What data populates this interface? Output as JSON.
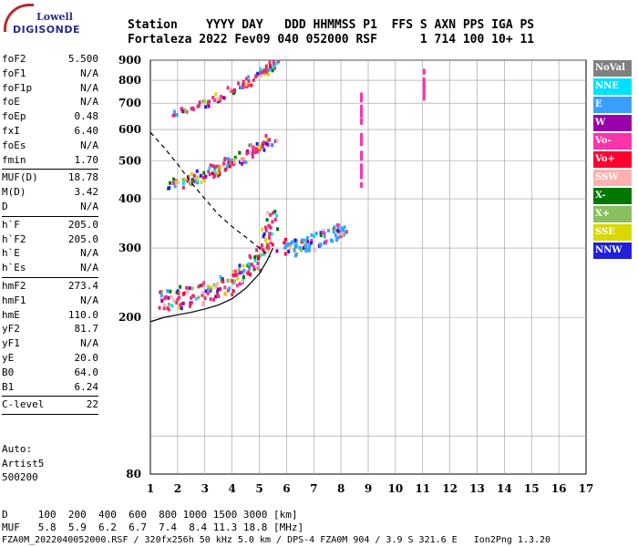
{
  "logo": {
    "line1": "Lowell",
    "line2": "DIGISONDE"
  },
  "header": {
    "row1": "Station    YYYY DAY   DDD HHMMSS P1  FFS S AXN PPS IGA PS",
    "row2": "Fortaleza 2022 Fev09 040 052000 RSF      1 714 100 10+ 11"
  },
  "params_group1": [
    {
      "k": "foF2",
      "v": "5.500"
    },
    {
      "k": "foF1",
      "v": "N/A"
    },
    {
      "k": "foF1p",
      "v": "N/A"
    },
    {
      "k": "foE",
      "v": "N/A"
    },
    {
      "k": "foEp",
      "v": "0.48"
    },
    {
      "k": "fxI",
      "v": "6.40"
    },
    {
      "k": "foEs",
      "v": "N/A"
    },
    {
      "k": "fmin",
      "v": "1.70"
    }
  ],
  "params_group2": [
    {
      "k": "MUF(D)",
      "v": "18.78"
    },
    {
      "k": "M(D)",
      "v": "3.42"
    },
    {
      "k": "D",
      "v": "N/A"
    }
  ],
  "params_group3": [
    {
      "k": "h`F",
      "v": "205.0"
    },
    {
      "k": "h`F2",
      "v": "205.0"
    },
    {
      "k": "h`E",
      "v": "N/A"
    },
    {
      "k": "h`Es",
      "v": "N/A"
    }
  ],
  "params_group4": [
    {
      "k": "hmF2",
      "v": "273.4"
    },
    {
      "k": "hmF1",
      "v": "N/A"
    },
    {
      "k": "hmE",
      "v": "110.0"
    },
    {
      "k": "yF2",
      "v": "81.7"
    },
    {
      "k": "yF1",
      "v": "N/A"
    },
    {
      "k": "yE",
      "v": "20.0"
    },
    {
      "k": "B0",
      "v": "64.0"
    },
    {
      "k": "B1",
      "v": "6.24"
    }
  ],
  "params_group5": [
    {
      "k": "C-level",
      "v": "22"
    }
  ],
  "auto": {
    "l1": "Auto:",
    "l2": "Artist5",
    "l3": "500200"
  },
  "bottom": {
    "d_row": "D     100  200  400  600  800 1000 1500 3000 [km]",
    "muf_row": "MUF   5.8  5.9  6.2  6.7  7.4  8.4 11.3 18.8 [MHz]",
    "footer": "FZA0M_2022040052000.RSF / 320fx256h 50 kHz 5.0 km / DPS-4 FZA0M 904 / 3.9 S 321.6 E   Ion2Png 1.3.20"
  },
  "legend": [
    {
      "label": "NoVal",
      "color": "#808080"
    },
    {
      "label": "NNE",
      "color": "#00e0ff"
    },
    {
      "label": "E",
      "color": "#3aa0ff"
    },
    {
      "label": "W",
      "color": "#9900aa"
    },
    {
      "label": "Vo-",
      "color": "#ff33aa"
    },
    {
      "label": "Vo+",
      "color": "#ff0033"
    },
    {
      "label": "SSW",
      "color": "#ffb0b0"
    },
    {
      "label": "X-",
      "color": "#007700"
    },
    {
      "label": "X+",
      "color": "#88c060"
    },
    {
      "label": "SSE",
      "color": "#d8d800"
    },
    {
      "label": "NNW",
      "color": "#2020dd"
    }
  ],
  "chart_data": {
    "type": "scatter",
    "xlabel": "",
    "ylabel": "",
    "xlim": [
      1,
      17
    ],
    "ylim": [
      80,
      900
    ],
    "y_scale": "log",
    "grid": true,
    "x_ticks": [
      1,
      2,
      3,
      4,
      5,
      6,
      7,
      8,
      9,
      10,
      11,
      12,
      13,
      14,
      15,
      16,
      17
    ],
    "y_ticks": [
      80,
      200,
      300,
      400,
      500,
      600,
      700,
      800,
      900
    ],
    "series": [
      {
        "name": "F2 trace",
        "color": "#e0307a",
        "points": [
          [
            1.3,
            210
          ],
          [
            1.8,
            215
          ],
          [
            2.3,
            218
          ],
          [
            2.8,
            222
          ],
          [
            3.3,
            228
          ],
          [
            3.8,
            235
          ],
          [
            4.3,
            245
          ],
          [
            4.8,
            262
          ],
          [
            5.1,
            285
          ],
          [
            5.4,
            320
          ],
          [
            5.5,
            360
          ]
        ]
      },
      {
        "name": "F2 second hop",
        "color": "#e0307a",
        "points": [
          [
            1.8,
            430
          ],
          [
            2.5,
            440
          ],
          [
            3,
            455
          ],
          [
            3.5,
            470
          ],
          [
            4,
            485
          ],
          [
            4.5,
            505
          ],
          [
            5,
            535
          ],
          [
            5.5,
            560
          ]
        ]
      },
      {
        "name": "F2 third hop",
        "color": "#e0307a",
        "points": [
          [
            2,
            650
          ],
          [
            3,
            690
          ],
          [
            3.8,
            730
          ],
          [
            4.5,
            780
          ],
          [
            5.2,
            830
          ],
          [
            5.6,
            880
          ]
        ]
      },
      {
        "name": "X trace",
        "color": "#3aa0ff",
        "points": [
          [
            5.8,
            290
          ],
          [
            6.3,
            295
          ],
          [
            6.8,
            300
          ],
          [
            7.3,
            310
          ],
          [
            7.8,
            320
          ],
          [
            8.2,
            330
          ]
        ]
      },
      {
        "name": "Vo- stripe 8.8 MHz",
        "color": "#ff33aa",
        "points": [
          [
            8.75,
            430
          ],
          [
            8.75,
            480
          ],
          [
            8.75,
            540
          ],
          [
            8.75,
            600
          ],
          [
            8.75,
            650
          ],
          [
            8.75,
            700
          ],
          [
            8.75,
            740
          ]
        ]
      },
      {
        "name": "Vo- stripe 11.1 MHz",
        "color": "#ff33aa",
        "points": [
          [
            11.05,
            720
          ],
          [
            11.05,
            780
          ],
          [
            11.05,
            850
          ]
        ]
      }
    ],
    "profile_curve": [
      [
        1,
        195
      ],
      [
        1.5,
        200
      ],
      [
        2,
        203
      ],
      [
        2.5,
        206
      ],
      [
        3,
        210
      ],
      [
        3.5,
        215
      ],
      [
        4,
        223
      ],
      [
        4.5,
        237
      ],
      [
        5,
        258
      ],
      [
        5.3,
        280
      ],
      [
        5.5,
        300
      ]
    ],
    "dashed_curve": [
      [
        1,
        590
      ],
      [
        1.5,
        540
      ],
      [
        2,
        490
      ],
      [
        2.5,
        440
      ],
      [
        3,
        400
      ],
      [
        3.5,
        365
      ],
      [
        4,
        340
      ],
      [
        4.5,
        320
      ],
      [
        5,
        300
      ],
      [
        5.4,
        285
      ]
    ]
  }
}
